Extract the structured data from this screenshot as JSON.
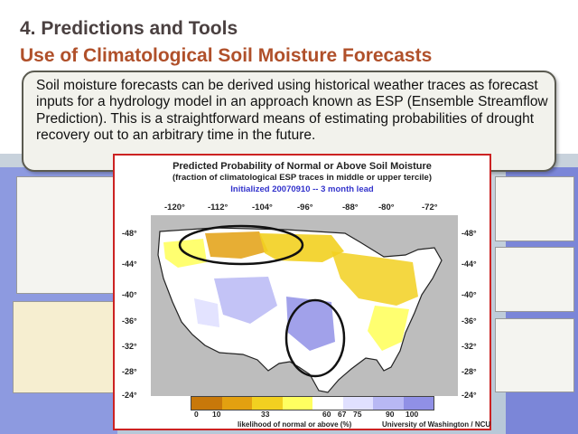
{
  "slide": {
    "title_line1": "4. Predictions and Tools",
    "title_line2": "Use of Climatological Soil Moisture Forecasts",
    "body_text": "Soil moisture forecasts can be derived using historical weather traces as forecast inputs for a hydrology model in an approach known as ESP (Ensemble Streamflow Prediction). This is a straightforward means of estimating probabilities of drought recovery out to an arbitrary time in the future."
  },
  "map": {
    "title": "Predicted Probability of  Normal or Above Soil Moisture",
    "subtitle": "(fraction of climatological ESP traces in middle or upper tercile)",
    "initialized": "Initialized 20070910 -- 3 month lead",
    "longitudes": [
      "-120°",
      "-112°",
      "-104°",
      "-96°",
      "-88°",
      "-80°",
      "-72°"
    ],
    "latitudes_left": [
      "-48°",
      "-44°",
      "-40°",
      "-36°",
      "-32°",
      "-28°",
      "-24°"
    ],
    "latitudes_right": [
      "-48°",
      "-44°",
      "-40°",
      "-36°",
      "-32°",
      "-28°",
      "-24°"
    ],
    "colorbar_ticks": [
      "0",
      "10",
      "33",
      "60",
      "67",
      "75",
      "90",
      "100"
    ],
    "colorbar_label": "likelihood of normal or above (%)",
    "credit": "University of Washington / NCU",
    "colors": [
      "#c8780a",
      "#e3a010",
      "#f2d020",
      "#ffff60",
      "#ffffff",
      "#e0e0ff",
      "#b8b8f4",
      "#9090e6"
    ]
  }
}
